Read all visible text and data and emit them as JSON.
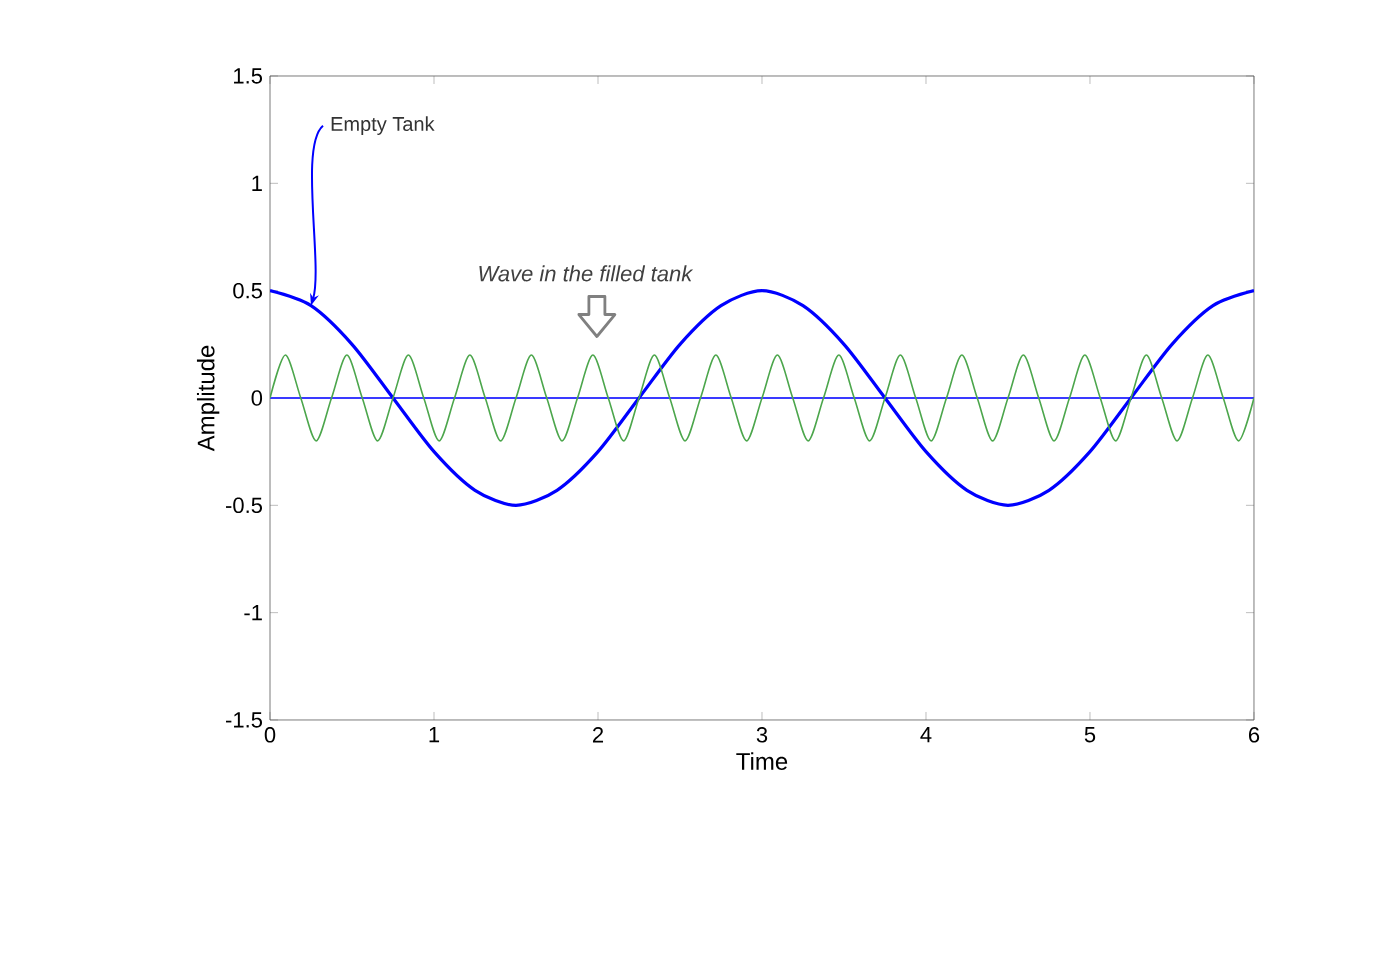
{
  "chart_data": {
    "type": "line",
    "xlabel": "Time",
    "ylabel": "Amplitude",
    "xlim": [
      0,
      6
    ],
    "ylim": [
      -1.5,
      1.5
    ],
    "xticks": [
      0,
      1,
      2,
      3,
      4,
      5,
      6
    ],
    "yticks": [
      -1.5,
      -1,
      -0.5,
      0,
      0.5,
      1,
      1.5
    ],
    "line_style": "solid",
    "series": [
      {
        "color": "#0000ff",
        "x": [
          0,
          0.25,
          0.5,
          0.75,
          1,
          1.25,
          1.5,
          1.75,
          2,
          2.25,
          2.5,
          2.75,
          3,
          3.25,
          3.5,
          3.75,
          4,
          4.25,
          4.5,
          4.75,
          5,
          5.25,
          5.5,
          5.75,
          6
        ],
        "values": [
          0.5,
          0.43,
          0.25,
          0,
          -0.25,
          -0.43,
          -0.5,
          -0.43,
          -0.25,
          0,
          0.25,
          0.43,
          0.5,
          0.43,
          0.25,
          0,
          -0.25,
          -0.43,
          -0.5,
          -0.43,
          -0.25,
          0,
          0.25,
          0.43,
          0.5
        ]
      },
      {
        "color": "#4ca64c",
        "x": [
          0,
          0.09375,
          0.1875,
          0.28125,
          0.375,
          0.46875,
          0.5625,
          0.65625,
          0.75,
          0.84375,
          0.9375,
          1.03125,
          1.125,
          1.21875,
          1.3125,
          1.40625,
          1.5,
          1.59375,
          1.6875,
          1.78125,
          1.875,
          1.96875,
          2.0625,
          2.15625,
          2.25,
          2.34375,
          2.4375,
          2.53125,
          2.625,
          2.71875,
          2.8125,
          2.90625,
          3,
          3.09375,
          3.1875,
          3.28125,
          3.375,
          3.46875,
          3.5625,
          3.65625,
          3.75,
          3.84375,
          3.9375,
          4.03125,
          4.125,
          4.21875,
          4.3125,
          4.40625,
          4.5,
          4.59375,
          4.6875,
          4.78125,
          4.875,
          4.96875,
          5.0625,
          5.15625,
          5.25,
          5.34375,
          5.4375,
          5.53125,
          5.625,
          5.71875,
          5.8125,
          5.90625,
          6
        ],
        "values": [
          0,
          0.2,
          0,
          -0.2,
          0,
          0.2,
          0,
          -0.2,
          0,
          0.2,
          0,
          -0.2,
          0,
          0.2,
          0,
          -0.2,
          0,
          0.2,
          0,
          -0.2,
          0,
          0.2,
          0,
          -0.2,
          0,
          0.2,
          0,
          -0.2,
          0,
          0.2,
          0,
          -0.2,
          0,
          0.2,
          0,
          -0.2,
          0,
          0.2,
          0,
          -0.2,
          0,
          0.2,
          0,
          -0.2,
          0,
          0.2,
          0,
          -0.2,
          0,
          0.2,
          0,
          -0.2,
          0,
          0.2,
          0,
          -0.2,
          0,
          0.2,
          0,
          -0.2,
          0,
          0.2,
          0,
          -0.2,
          0
        ]
      }
    ],
    "ref_lines": [
      {
        "axis": "y",
        "value": 0,
        "color": "#3a3aff"
      }
    ],
    "annotations": [
      {
        "text": "Empty Tank",
        "x": 0.25,
        "y": 0.43
      },
      "Wave in the filled tank"
    ]
  }
}
